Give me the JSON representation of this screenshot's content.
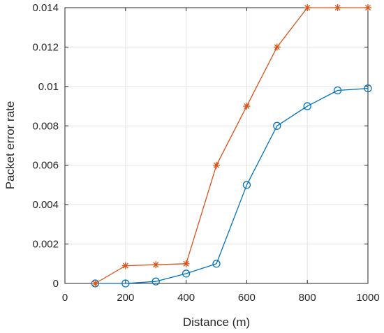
{
  "chart_data": {
    "type": "line",
    "xlabel": "Distance (m)",
    "ylabel": "Packet error rate",
    "xlim": [
      0,
      1000
    ],
    "ylim": [
      0,
      0.014
    ],
    "grid": true,
    "x_ticks": [
      0,
      200,
      400,
      600,
      800,
      1000
    ],
    "x_tick_labels": [
      "0",
      "200",
      "400",
      "600",
      "800",
      "1000"
    ],
    "y_ticks": [
      0,
      0.002,
      0.004,
      0.006,
      0.008,
      0.01,
      0.012,
      0.014
    ],
    "y_tick_labels": [
      "0",
      "0.002",
      "0.004",
      "0.006",
      "0.008",
      "0.01",
      "0.012",
      "0.014"
    ],
    "x": [
      100,
      200,
      300,
      400,
      500,
      600,
      700,
      800,
      900,
      1000
    ],
    "series": [
      {
        "marker": "circle",
        "color": "#0072BD",
        "values": [
          0,
          0,
          0.0001,
          0.0005,
          0.001,
          0.005,
          0.008,
          0.009,
          0.0098,
          0.0099
        ]
      },
      {
        "marker": "asterisk",
        "color": "#D95319",
        "values": [
          0,
          0.0009,
          0.00095,
          0.001,
          0.006,
          0.009,
          0.012,
          0.014,
          0.014,
          0.014
        ]
      }
    ]
  }
}
